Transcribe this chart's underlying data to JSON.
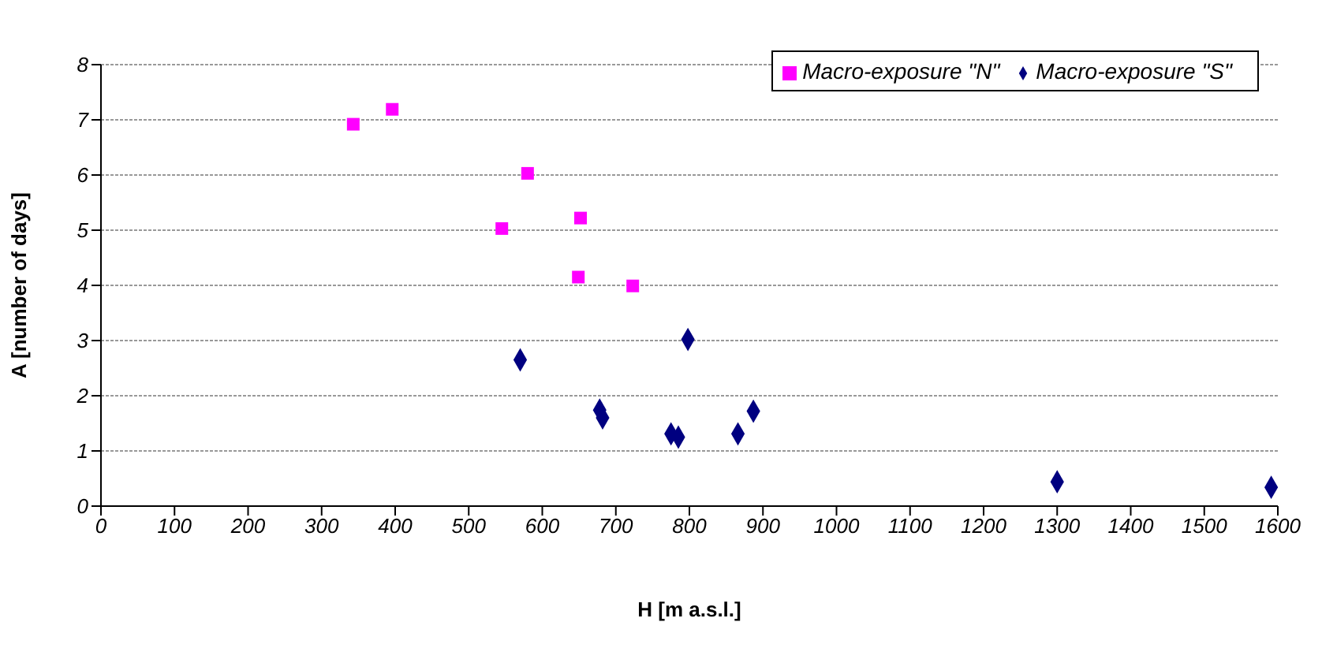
{
  "chart_data": {
    "type": "scatter",
    "xlabel": "H [m a.s.l.]",
    "ylabel": "A [number of days]",
    "xlim": [
      0,
      1600
    ],
    "xticks": [
      0,
      100,
      200,
      300,
      400,
      500,
      600,
      700,
      800,
      900,
      1000,
      1100,
      1200,
      1300,
      1400,
      1500,
      1600
    ],
    "ylim": [
      0,
      8
    ],
    "yticks": [
      0,
      1,
      2,
      3,
      4,
      5,
      6,
      7,
      8
    ],
    "grid": "y",
    "legend": "top right",
    "series": [
      {
        "name": "Macro-exposure \"S\"",
        "color": "#000080",
        "marker": "diamond",
        "x": [
          570,
          678,
          682,
          775,
          785,
          798,
          866,
          887,
          1300,
          1591
        ],
        "values": [
          2.65,
          1.74,
          1.6,
          1.31,
          1.25,
          3.02,
          1.31,
          1.72,
          0.44,
          0.34
        ]
      },
      {
        "name": "Macro-exposure \"N\"",
        "color": "#ff00ff",
        "marker": "square",
        "x": [
          343,
          396,
          545,
          580,
          649,
          652,
          723
        ],
        "values": [
          6.92,
          7.19,
          5.03,
          6.03,
          4.15,
          5.22,
          3.99
        ]
      }
    ]
  }
}
